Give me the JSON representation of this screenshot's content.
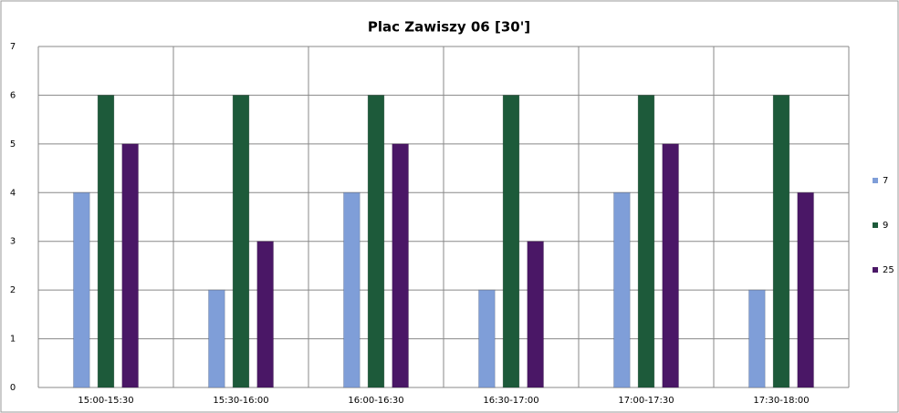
{
  "chart_data": {
    "type": "bar",
    "title": "Plac Zawiszy 06 [30']",
    "categories": [
      "15:00-15:30",
      "15:30-16:00",
      "16:00-16:30",
      "16:30-17:00",
      "17:00-17:30",
      "17:30-18:00"
    ],
    "series": [
      {
        "name": "7",
        "color": "#7f9ed8",
        "values": [
          4,
          2,
          4,
          2,
          4,
          2
        ]
      },
      {
        "name": "9",
        "color": "#1d5a3a",
        "values": [
          6,
          6,
          6,
          6,
          6,
          6
        ]
      },
      {
        "name": "25",
        "color": "#4a1766",
        "values": [
          5,
          3,
          5,
          3,
          5,
          4
        ]
      }
    ],
    "ylim": [
      0,
      7
    ],
    "yticks": [
      0,
      1,
      2,
      3,
      4,
      5,
      6,
      7
    ],
    "grid": true,
    "legend": "right"
  }
}
